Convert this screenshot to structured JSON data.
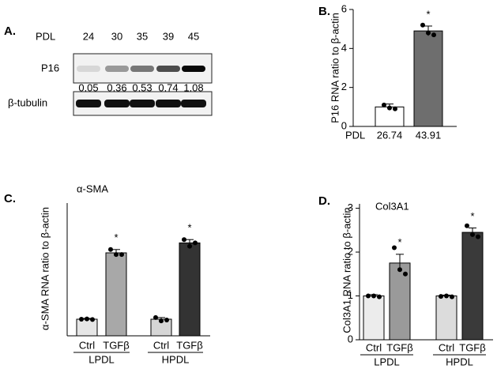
{
  "blot": {
    "panel": "A.",
    "header_label": "PDL",
    "lanes": [
      "24",
      "30",
      "35",
      "39",
      "45"
    ],
    "rows": [
      {
        "label": "P16"
      },
      {
        "label": "β-tubulin"
      }
    ],
    "quantification": [
      0.05,
      0.36,
      0.53,
      0.74,
      1.08
    ]
  },
  "chart_data": [
    {
      "type": "bar",
      "panel": "B.",
      "y_label": "P16 RNA ratio to β-actin",
      "x_label": "PDL",
      "categories": [
        "26.74",
        "43.91"
      ],
      "values": [
        1.0,
        4.9
      ],
      "errors": [
        0.15,
        0.25
      ],
      "points": [
        [
          1.1,
          0.95,
          0.9
        ],
        [
          5.2,
          4.8,
          4.7
        ]
      ],
      "colors": [
        "#ffffff",
        "#6e6e6e"
      ],
      "significance": [
        null,
        "*"
      ],
      "ylim": [
        0,
        6
      ],
      "yticks": [
        0,
        2,
        4,
        6
      ]
    },
    {
      "type": "bar",
      "panel": "C.",
      "title": "α-SMA",
      "y_label": "α-SMA RNA ratio to β-actin",
      "categories": [
        "Ctrl",
        "TGFβ",
        "Ctrl",
        "TGFβ"
      ],
      "groups": [
        "LPDL",
        "HPDL"
      ],
      "values": [
        1.0,
        5.0,
        1.0,
        5.6
      ],
      "errors": [
        0.05,
        0.2,
        0.1,
        0.2
      ],
      "points": [
        [
          1.0,
          1.02,
          0.98
        ],
        [
          5.2,
          4.9,
          4.9
        ],
        [
          1.1,
          0.9,
          0.95
        ],
        [
          5.8,
          5.4,
          5.6
        ]
      ],
      "colors": [
        "#e6e6e6",
        "#a8a8a8",
        "#d6d6d6",
        "#333333"
      ],
      "significance": [
        null,
        "*",
        null,
        "*"
      ],
      "ylim": [
        0,
        8
      ]
    },
    {
      "type": "bar",
      "panel": "D.",
      "title": "Col3A1",
      "y_label": "Col3A1 RNA ratio to β-actin",
      "categories": [
        "Ctrl",
        "TGFβ",
        "Ctrl",
        "TGFβ"
      ],
      "groups": [
        "LPDL",
        "HPDL"
      ],
      "values": [
        1.0,
        1.75,
        1.0,
        2.45
      ],
      "errors": [
        0.03,
        0.2,
        0.02,
        0.1
      ],
      "points": [
        [
          1.0,
          1.0,
          0.98
        ],
        [
          2.1,
          1.6,
          1.5
        ],
        [
          0.99,
          1.0,
          0.98
        ],
        [
          2.6,
          2.4,
          2.35
        ]
      ],
      "colors": [
        "#ececec",
        "#9a9a9a",
        "#dcdcdc",
        "#3a3a3a"
      ],
      "significance": [
        null,
        "*",
        null,
        "*"
      ],
      "ylim": [
        0,
        3.1
      ],
      "yticks": [
        0,
        1,
        2,
        3
      ]
    }
  ]
}
